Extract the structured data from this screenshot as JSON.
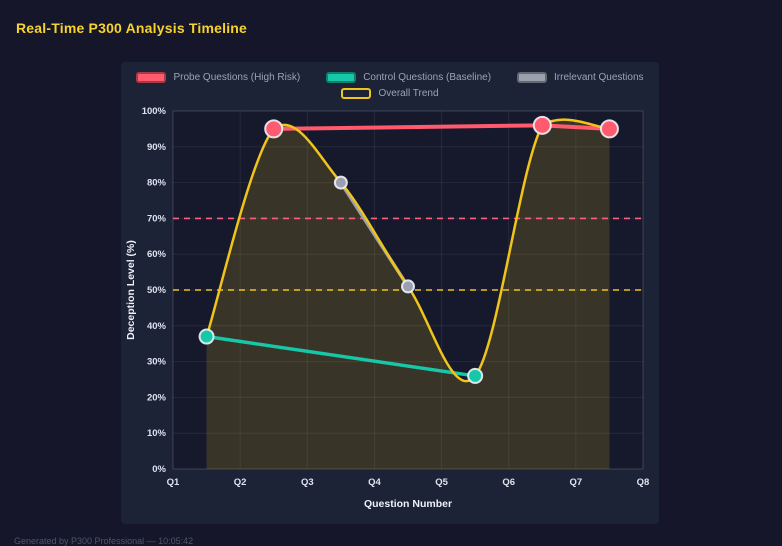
{
  "page": {
    "title": "Real-Time P300 Analysis Timeline",
    "footer": "Generated by P300 Professional — 10:05:42"
  },
  "colors": {
    "page_bg": "#16162a",
    "panel_bg": "#1d2337",
    "title": "#f6d32d",
    "axis_text": "#dde2ee",
    "legend_text": "#9aa3b4",
    "grid": "rgba(255,255,255,0.07)",
    "probe_red": "#ff5a6e",
    "control_teal": "#16c7a8",
    "irrelevant_gray": "#9aa0ae",
    "trend_gold": "#f0c419",
    "threshold_pink": "#ff5f7e"
  },
  "chart_data": {
    "type": "line",
    "title": "",
    "xlabel": "Question Number",
    "ylabel": "Deception Level (%)",
    "xlim": [
      1,
      8
    ],
    "ylim": [
      0,
      100
    ],
    "y_tick_step": 10,
    "x_tick_values": [
      1,
      2,
      3,
      4,
      5,
      6,
      7,
      8
    ],
    "x_tick_labels": [
      "Q1",
      "Q2",
      "Q3",
      "Q4",
      "Q5",
      "Q6",
      "Q7",
      "Q8"
    ],
    "grid": true,
    "legend_position": "top",
    "series": [
      {
        "name": "Probe Questions (High Risk)",
        "color": "#ff5a6e",
        "x": [
          2.5,
          6.5,
          7.5
        ],
        "y": [
          95,
          96,
          95
        ],
        "line_width": 4,
        "marker_radius": 8.5
      },
      {
        "name": "Control Questions (Baseline)",
        "color": "#16c7a8",
        "x": [
          1.5,
          5.5
        ],
        "y": [
          37,
          26
        ],
        "line_width": 3.5,
        "marker_radius": 7
      },
      {
        "name": "Irrelevant Questions",
        "color": "#9aa0ae",
        "x": [
          3.5,
          4.5
        ],
        "y": [
          80,
          51
        ],
        "line_width": 3.5,
        "marker_radius": 6
      },
      {
        "name": "Overall Trend",
        "color": "#f0c419",
        "x": [
          1.5,
          2.5,
          3.5,
          4.5,
          5.5,
          6.5,
          7.5
        ],
        "y": [
          37,
          95,
          80,
          51,
          26,
          96,
          95
        ],
        "smooth": true,
        "area": true,
        "area_opacity": 0.16,
        "line_width": 2.5,
        "marker_radius": 0,
        "hollow_swatch": true
      }
    ],
    "reference_lines": [
      {
        "y": 70,
        "color": "#ff5f7e",
        "style": "dashed"
      },
      {
        "y": 50,
        "color": "#f0c419",
        "style": "dashed"
      }
    ]
  }
}
